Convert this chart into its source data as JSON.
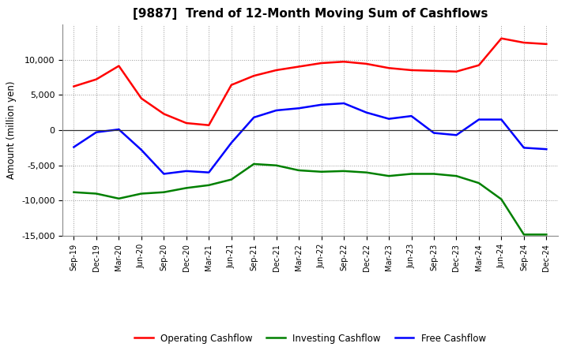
{
  "title": "[9887]  Trend of 12-Month Moving Sum of Cashflows",
  "ylabel": "Amount (million yen)",
  "ylim": [
    -15000,
    15000
  ],
  "yticks": [
    -15000,
    -10000,
    -5000,
    0,
    5000,
    10000
  ],
  "x_labels": [
    "Sep-19",
    "Dec-19",
    "Mar-20",
    "Jun-20",
    "Sep-20",
    "Dec-20",
    "Mar-21",
    "Jun-21",
    "Sep-21",
    "Dec-21",
    "Mar-22",
    "Jun-22",
    "Sep-22",
    "Dec-22",
    "Mar-23",
    "Jun-23",
    "Sep-23",
    "Dec-23",
    "Mar-24",
    "Jun-24",
    "Sep-24",
    "Dec-24"
  ],
  "operating": [
    6200,
    7200,
    9100,
    4500,
    2300,
    1000,
    700,
    6400,
    7700,
    8500,
    9000,
    9500,
    9700,
    9400,
    8800,
    8500,
    8400,
    8300,
    9200,
    13000,
    12400,
    12200
  ],
  "investing": [
    -8800,
    -9000,
    -9700,
    -9000,
    -8800,
    -8200,
    -7800,
    -7000,
    -4800,
    -5000,
    -5700,
    -5900,
    -5800,
    -6000,
    -6500,
    -6200,
    -6200,
    -6500,
    -7500,
    -9800,
    -14800,
    -14800
  ],
  "free": [
    -2400,
    -300,
    100,
    -2800,
    -6200,
    -5800,
    -6000,
    -1800,
    1800,
    2800,
    3100,
    3600,
    3800,
    2500,
    1600,
    2000,
    -400,
    -700,
    1500,
    1500,
    -2500,
    -2700
  ],
  "operating_color": "#FF0000",
  "investing_color": "#008000",
  "free_color": "#0000FF",
  "background_color": "#FFFFFF",
  "grid_color": "#999999",
  "line_width": 1.8
}
